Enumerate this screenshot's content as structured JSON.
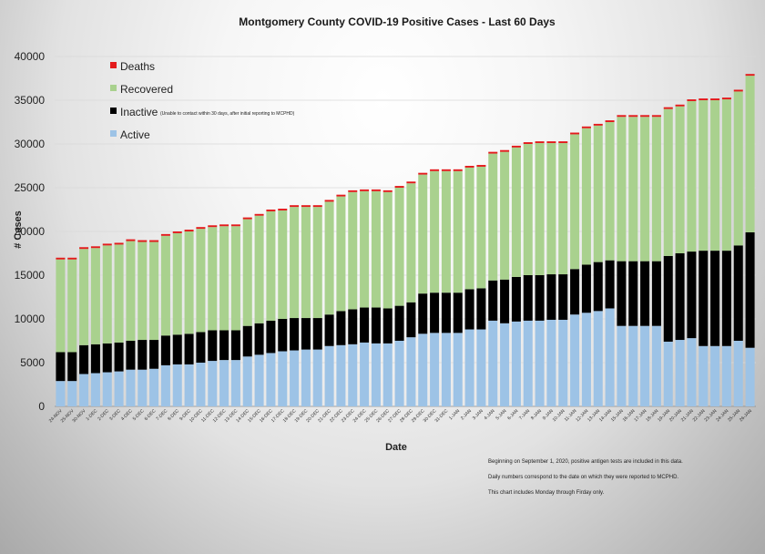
{
  "chart_data": {
    "type": "bar",
    "stacked": true,
    "title": "Montgomery County COVID-19 Positive Cases  - Last 60 Days",
    "xlabel": "Date",
    "ylabel": "# Cases",
    "ylim": [
      0,
      40000
    ],
    "yticks": [
      0,
      5000,
      10000,
      15000,
      20000,
      25000,
      30000,
      35000,
      40000
    ],
    "grid": true,
    "legend_position": "top-left",
    "categories": [
      "24-NOV",
      "25-NOV",
      "30-NOV",
      "1-DEC",
      "2-DEC",
      "3-DEC",
      "4-DEC",
      "5-DEC",
      "6-DEC",
      "7-DEC",
      "8-DEC",
      "9-DEC",
      "10-DEC",
      "11-DEC",
      "12-DEC",
      "13-DEC",
      "14-DEC",
      "15-DEC",
      "16-DEC",
      "17-DEC",
      "18-DEC",
      "19-DEC",
      "20-DEC",
      "21-DEC",
      "22-DEC",
      "23-DEC",
      "24-DEC",
      "25-DEC",
      "26-DEC",
      "27-DEC",
      "28-DEC",
      "29-DEC",
      "30-DEC",
      "31-DEC",
      "1-JAN",
      "2-JAN",
      "3-JAN",
      "4-JAN",
      "5-JAN",
      "6-JAN",
      "7-JAN",
      "8-JAN",
      "9-JAN",
      "10-JAN",
      "11-JAN",
      "12-JAN",
      "13-JAN",
      "14-JAN",
      "15-JAN",
      "16-JAN",
      "17-JAN",
      "18-JAN",
      "19-JAN",
      "20-JAN",
      "21-JAN",
      "22-JAN",
      "23-JAN",
      "24-JAN",
      "25-JAN",
      "26-JAN"
    ],
    "series": [
      {
        "name": "Active",
        "color": "#9dc3e6",
        "values": [
          2900,
          2900,
          3700,
          3800,
          3900,
          4000,
          4200,
          4200,
          4300,
          4700,
          4800,
          4800,
          5000,
          5200,
          5300,
          5300,
          5700,
          5900,
          6100,
          6300,
          6400,
          6500,
          6500,
          6900,
          7000,
          7100,
          7300,
          7200,
          7200,
          7500,
          7900,
          8300,
          8400,
          8400,
          8400,
          8800,
          8800,
          9800,
          9500,
          9700,
          9800,
          9800,
          9900,
          9900,
          10500,
          10700,
          10900,
          11200,
          9200,
          9200,
          9200,
          9200,
          7400,
          7600,
          7800,
          6900,
          6900,
          6900,
          7500,
          6700
        ]
      },
      {
        "name": "Inactive",
        "color": "#000000",
        "values": [
          3300,
          3300,
          3300,
          3300,
          3300,
          3300,
          3300,
          3400,
          3300,
          3400,
          3400,
          3500,
          3500,
          3500,
          3400,
          3400,
          3500,
          3600,
          3700,
          3700,
          3700,
          3600,
          3600,
          3600,
          3900,
          4000,
          4000,
          4100,
          4000,
          4000,
          4000,
          4600,
          4600,
          4600,
          4600,
          4600,
          4700,
          4600,
          5000,
          5100,
          5200,
          5200,
          5200,
          5200,
          5200,
          5500,
          5600,
          5500,
          7400,
          7400,
          7400,
          7400,
          9800,
          9900,
          9900,
          10900,
          10900,
          10900,
          10900,
          13200
        ]
      },
      {
        "name": "Recovered",
        "color": "#a9d18e",
        "values": [
          10600,
          10600,
          11000,
          11000,
          11200,
          11200,
          11400,
          11200,
          11200,
          11400,
          11600,
          11700,
          11800,
          11800,
          11900,
          11900,
          12200,
          12300,
          12500,
          12400,
          12700,
          12700,
          12700,
          12900,
          13100,
          13400,
          13300,
          13300,
          13300,
          13500,
          13600,
          13600,
          13900,
          13900,
          13900,
          13900,
          13900,
          14500,
          14600,
          14800,
          15000,
          15100,
          15000,
          15000,
          15400,
          15600,
          15600,
          15800,
          16500,
          16500,
          16500,
          16500,
          16800,
          16800,
          17200,
          17200,
          17200,
          17300,
          17600,
          17900
        ]
      },
      {
        "name": "Deaths",
        "color": "#e31a1c",
        "values": [
          200,
          200,
          200,
          200,
          200,
          200,
          200,
          200,
          200,
          200,
          200,
          200,
          200,
          200,
          200,
          200,
          200,
          200,
          200,
          200,
          200,
          200,
          200,
          200,
          200,
          200,
          200,
          200,
          200,
          200,
          200,
          200,
          200,
          200,
          200,
          200,
          200,
          200,
          200,
          200,
          200,
          200,
          200,
          200,
          200,
          200,
          200,
          200,
          200,
          200,
          200,
          200,
          200,
          200,
          200,
          200,
          200,
          200,
          200,
          200
        ]
      }
    ]
  },
  "legend": {
    "deaths_label": "Deaths",
    "recovered_label": "Recovered",
    "inactive_label": "Inactive",
    "inactive_note": "(Unable to contact within 30 days, after initial reporting to MCPHD)",
    "active_label": "Active"
  },
  "footnotes": {
    "line1": "Beginning on September 1, 2020, positive antigen tests are included in this data.",
    "line2": "Daily numbers correspond to the date on which they were reported to MCPHD.",
    "line3": "This chart includes Monday through Firday only."
  }
}
